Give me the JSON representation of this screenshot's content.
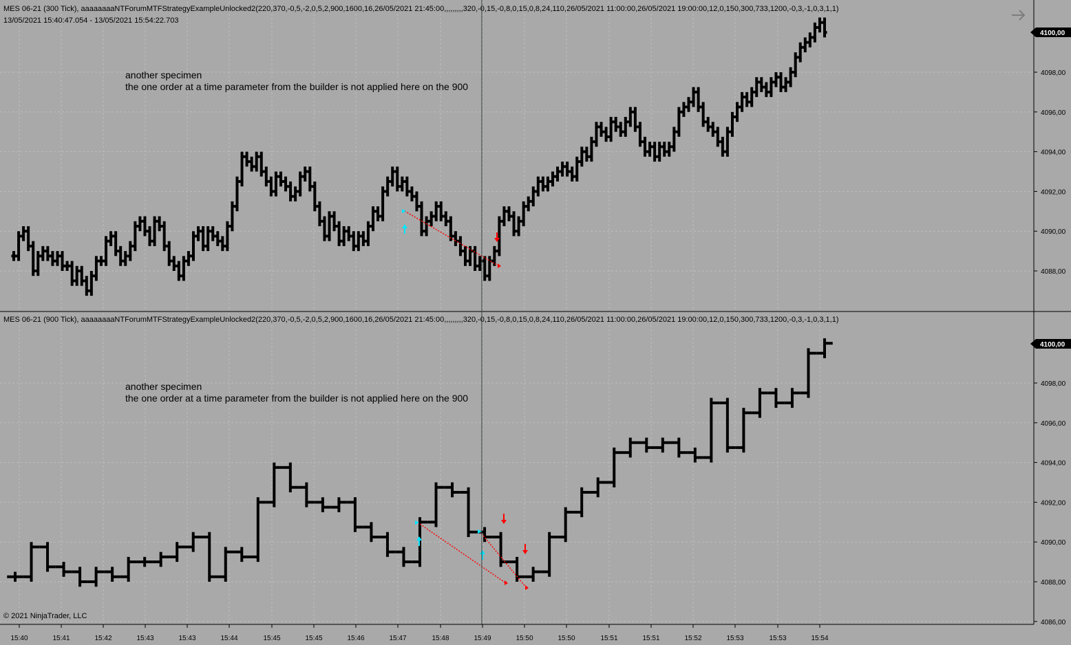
{
  "colors": {
    "background": "#a9a9a9",
    "grid": "#bdbdbd",
    "bar": "#000000",
    "long_marker": "#00e5ff",
    "short_marker": "#ff0000",
    "crosshair": "#2e3b3b"
  },
  "exit_arrow_icon": "arrow-right-icon",
  "copyright": "© 2021 NinjaTrader, LLC",
  "chart_data": [
    {
      "type": "ohlc",
      "title": "MES 06-21 (300 Tick), aaaaaaaaNTForumMTFStrategyExampleUnlocked2(220,370,-0,5,-2,0,5,2,900,1600,16,26/05/2021 21:45:00,,,,,,,,,320,-0,15,-0,8,0,15,0,8,24,110,26/05/2021 11:00:00,26/05/2021 19:00:00,12,0,150,300,733,1200,-0,3,-1,0,3,1,1)",
      "subtitle": "13/05/2021 15:40:47.054 - 13/05/2021 15:54:22.703",
      "annotation": [
        "another specimen",
        "the one order at a time parameter from the builder is not applied here on the 900"
      ],
      "ylim": [
        4086.5,
        4101.5
      ],
      "y_ticks": [
        "4088,00",
        "4090,00",
        "4092,00",
        "4094,00",
        "4096,00",
        "4098,00"
      ],
      "price_label": "4100,00",
      "grid": true,
      "close": [
        4088.75,
        4089.75,
        4090.0,
        4089.25,
        4088.0,
        4088.75,
        4089.0,
        4088.75,
        4088.5,
        4088.75,
        4088.25,
        4088.25,
        4087.5,
        4088.0,
        4087.5,
        4087.0,
        4087.75,
        4088.5,
        4088.5,
        4089.5,
        4089.75,
        4089.0,
        4088.5,
        4088.75,
        4089.25,
        4090.25,
        4090.5,
        4090.0,
        4089.5,
        4090.5,
        4090.25,
        4089.25,
        4088.5,
        4088.25,
        4087.75,
        4088.5,
        4088.75,
        4089.75,
        4090.0,
        4089.25,
        4090.0,
        4089.75,
        4089.5,
        4089.25,
        4090.25,
        4091.25,
        4092.5,
        4093.75,
        4093.5,
        4093.25,
        4093.75,
        4093.0,
        4092.5,
        4092.0,
        4092.75,
        4092.5,
        4092.25,
        4091.75,
        4092.0,
        4092.75,
        4093.0,
        4092.25,
        4091.25,
        4090.5,
        4089.75,
        4090.75,
        4090.25,
        4089.5,
        4090.0,
        4089.75,
        4089.25,
        4089.75,
        4089.5,
        4090.25,
        4091.0,
        4090.75,
        4092.0,
        4092.5,
        4093.0,
        4092.25,
        4092.5,
        4092.0,
        4091.75,
        4091.25,
        4090.0,
        4090.5,
        4090.75,
        4091.25,
        4090.75,
        4090.5,
        4089.75,
        4089.5,
        4089.0,
        4088.5,
        4089.0,
        4088.25,
        4088.5,
        4087.75,
        4088.5,
        4089.0,
        4090.5,
        4091.0,
        4090.75,
        4090.0,
        4090.5,
        4091.25,
        4091.5,
        4092.0,
        4092.5,
        4092.25,
        4092.5,
        4092.75,
        4093.0,
        4093.25,
        4093.0,
        4092.75,
        4093.5,
        4094.0,
        4093.75,
        4094.5,
        4095.25,
        4095.0,
        4094.75,
        4095.5,
        4095.25,
        4095.0,
        4095.5,
        4096.0,
        4095.25,
        4094.5,
        4094.0,
        4094.25,
        4093.75,
        4094.25,
        4094.0,
        4094.25,
        4095.0,
        4096.0,
        4096.25,
        4096.5,
        4097.0,
        4096.25,
        4095.5,
        4095.25,
        4095.0,
        4094.5,
        4094.0,
        4095.0,
        4095.75,
        4096.25,
        4096.75,
        4096.5,
        4097.0,
        4097.5,
        4097.25,
        4097.0,
        4097.5,
        4097.75,
        4097.25,
        4097.5,
        4098.0,
        4098.75,
        4099.25,
        4099.5,
        4099.75,
        4100.25,
        4100.5,
        4100.0
      ]
    },
    {
      "type": "ohlc",
      "title": "MES 06-21 (900 Tick), aaaaaaaaNTForumMTFStrategyExampleUnlocked2(220,370,-0,5,-2,0,5,2,900,1600,16,26/05/2021 21:45:00,,,,,,,,,320,-0,15,-0,8,0,15,0,8,24,110,26/05/2021 11:00:00,26/05/2021 19:00:00,12,0,150,300,733,1200,-0,3,-1,0,3,1,1)",
      "annotation": [
        "another specimen",
        "the one order at a time parameter from the builder is not applied here on the 900"
      ],
      "ylim": [
        4086.0,
        4101.5
      ],
      "y_ticks": [
        "4086,00",
        "4088,00",
        "4090,00",
        "4092,00",
        "4094,00",
        "4096,00",
        "4098,00"
      ],
      "price_label": "4100,00",
      "grid": true,
      "close": [
        4088.25,
        4089.75,
        4088.75,
        4088.5,
        4088.0,
        4088.5,
        4088.25,
        4089.0,
        4089.0,
        4089.25,
        4089.75,
        4090.25,
        4088.25,
        4089.5,
        4089.25,
        4092.0,
        4093.75,
        4092.75,
        4092.0,
        4091.75,
        4092.0,
        4090.75,
        4090.25,
        4089.5,
        4089.0,
        4091.0,
        4092.75,
        4092.5,
        4090.5,
        4090.25,
        4089.0,
        4088.25,
        4088.5,
        4090.25,
        4091.5,
        4092.5,
        4093.0,
        4094.5,
        4095.0,
        4094.75,
        4095.0,
        4094.5,
        4094.25,
        4097.0,
        4094.75,
        4096.5,
        4097.5,
        4097.0,
        4097.5,
        4099.5,
        4100.0
      ]
    }
  ],
  "time_axis": [
    "15:40",
    "15:41",
    "15:42",
    "15:43",
    "15:43",
    "15:44",
    "15:45",
    "15:45",
    "15:46",
    "15:47",
    "15:48",
    "15:49",
    "15:50",
    "15:50",
    "15:51",
    "15:51",
    "15:52",
    "15:53",
    "15:53",
    "15:54"
  ]
}
